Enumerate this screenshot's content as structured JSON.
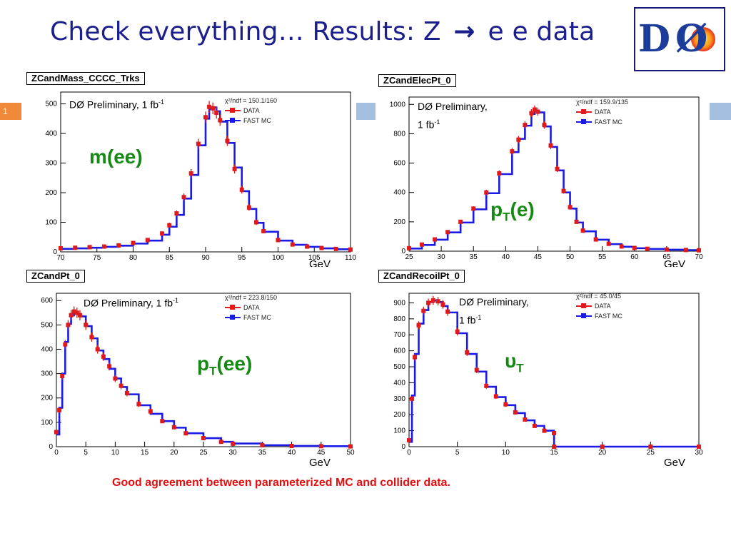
{
  "slide": {
    "title_left": "Check everything… Results: Z",
    "title_arrow": "→",
    "title_right": "e e data",
    "slide_number": "1",
    "footnote": "Good agreement between parameterized MC and collider data."
  },
  "colors": {
    "title": "#1a1f8c",
    "data": "#e01a1a",
    "mc": "#1a1ae6",
    "label": "#148a14",
    "note": "#e01010"
  },
  "common": {
    "prelim_main": "DØ Preliminary, 1 fb",
    "prelim_line1": "DØ Preliminary,",
    "prelim_line2": "1 fb",
    "prelim_sup": "-1",
    "legend_data": "DATA",
    "legend_mc": "FAST MC",
    "unit": "GeV"
  },
  "labels": {
    "mee": "m(ee)",
    "pte_main": "p",
    "pte_sub": "T",
    "pte_tail": "(e)",
    "ptee_main": "p",
    "ptee_sub": "T",
    "ptee_tail": "(ee)",
    "ut_main": "υ",
    "ut_sub": "T"
  },
  "chart_data": [
    {
      "type": "line",
      "histogram": "ZCandMass_CCCC_Trks",
      "chi2": "χ²/ndf = 150.1/160",
      "x": [
        70,
        72,
        74,
        76,
        78,
        80,
        82,
        84,
        85,
        86,
        87,
        88,
        89,
        90,
        90.5,
        91,
        91.5,
        92,
        93,
        94,
        95,
        96,
        97,
        98,
        100,
        102,
        104,
        106,
        108,
        110
      ],
      "series": [
        {
          "name": "DATA",
          "values": [
            12,
            14,
            16,
            18,
            22,
            30,
            40,
            62,
            90,
            130,
            185,
            265,
            365,
            455,
            490,
            485,
            470,
            445,
            375,
            280,
            210,
            150,
            100,
            70,
            40,
            25,
            18,
            13,
            10,
            8
          ]
        },
        {
          "name": "FAST MC",
          "values": [
            10,
            12,
            14,
            17,
            21,
            28,
            38,
            58,
            85,
            125,
            180,
            260,
            360,
            450,
            482,
            488,
            475,
            440,
            368,
            285,
            205,
            145,
            98,
            68,
            38,
            24,
            17,
            12,
            9,
            7
          ]
        }
      ],
      "xlim": [
        70,
        110
      ],
      "ylim": [
        0,
        540
      ],
      "xticks": [
        70,
        75,
        80,
        85,
        90,
        95,
        100,
        105,
        110
      ],
      "yticks": [
        0,
        100,
        200,
        300,
        400,
        500
      ],
      "xlabel": "GeV"
    },
    {
      "type": "line",
      "histogram": "ZCandElecPt_0",
      "chi2": "χ²/ndf = 159.9/135",
      "x": [
        25,
        27,
        29,
        31,
        33,
        35,
        37,
        39,
        41,
        42,
        43,
        44,
        44.5,
        45,
        46,
        47,
        48,
        49,
        50,
        51,
        52,
        54,
        56,
        58,
        60,
        62,
        65,
        68,
        70
      ],
      "series": [
        {
          "name": "DATA",
          "values": [
            20,
            45,
            80,
            130,
            200,
            290,
            400,
            530,
            680,
            760,
            860,
            940,
            965,
            950,
            860,
            720,
            560,
            410,
            300,
            200,
            140,
            80,
            50,
            32,
            22,
            16,
            11,
            8,
            6
          ]
        },
        {
          "name": "FAST MC",
          "values": [
            18,
            42,
            78,
            128,
            195,
            285,
            395,
            525,
            675,
            765,
            855,
            935,
            955,
            945,
            850,
            710,
            550,
            400,
            290,
            195,
            135,
            78,
            48,
            30,
            20,
            15,
            10,
            7,
            5
          ]
        }
      ],
      "xlim": [
        25,
        70
      ],
      "ylim": [
        0,
        1050
      ],
      "xticks": [
        25,
        30,
        35,
        40,
        45,
        50,
        55,
        60,
        65,
        70
      ],
      "yticks": [
        0,
        200,
        400,
        600,
        800,
        1000
      ],
      "xlabel": "GeV"
    },
    {
      "type": "line",
      "histogram": "ZCandPt_0",
      "chi2": "χ²/ndf = 223.8/150",
      "x": [
        0,
        0.5,
        1,
        1.5,
        2,
        2.5,
        3,
        3.5,
        4,
        5,
        6,
        7,
        8,
        9,
        10,
        11,
        12,
        14,
        16,
        18,
        20,
        22,
        25,
        28,
        30,
        35,
        40,
        45,
        50
      ],
      "series": [
        {
          "name": "DATA",
          "values": [
            60,
            150,
            290,
            420,
            500,
            540,
            555,
            550,
            540,
            500,
            450,
            400,
            370,
            330,
            280,
            250,
            220,
            175,
            145,
            105,
            80,
            55,
            35,
            20,
            12,
            6,
            3,
            2,
            1
          ]
        },
        {
          "name": "FAST MC",
          "values": [
            50,
            160,
            300,
            430,
            505,
            540,
            550,
            545,
            535,
            495,
            445,
            395,
            360,
            320,
            280,
            245,
            215,
            170,
            135,
            105,
            78,
            55,
            35,
            20,
            13,
            6,
            3,
            2,
            1
          ]
        }
      ],
      "xlim": [
        0,
        50
      ],
      "ylim": [
        0,
        630
      ],
      "xticks": [
        0,
        5,
        10,
        15,
        20,
        25,
        30,
        35,
        40,
        45,
        50
      ],
      "yticks": [
        0,
        100,
        200,
        300,
        400,
        500,
        600
      ],
      "xlabel": "GeV"
    },
    {
      "type": "line",
      "histogram": "ZCandRecoilPt_0",
      "chi2": "χ²/ndf = 45.0/45",
      "x": [
        0,
        0.3,
        0.6,
        1,
        1.5,
        2,
        2.5,
        3,
        3.5,
        4,
        5,
        6,
        7,
        8,
        9,
        10,
        11,
        12,
        13,
        14,
        15,
        15.01,
        20,
        25,
        30
      ],
      "series": [
        {
          "name": "DATA",
          "values": [
            40,
            300,
            560,
            760,
            850,
            900,
            915,
            910,
            890,
            845,
            720,
            590,
            480,
            380,
            315,
            265,
            215,
            170,
            130,
            100,
            85,
            0,
            0,
            0,
            0
          ]
        },
        {
          "name": "FAST MC",
          "values": [
            30,
            320,
            580,
            770,
            855,
            905,
            915,
            905,
            880,
            840,
            710,
            580,
            470,
            375,
            310,
            260,
            210,
            165,
            130,
            100,
            80,
            0,
            0,
            0,
            0
          ]
        }
      ],
      "xlim": [
        0,
        30
      ],
      "ylim": [
        0,
        960
      ],
      "xticks": [
        0,
        5,
        10,
        15,
        20,
        25,
        30
      ],
      "yticks": [
        0,
        100,
        200,
        300,
        400,
        500,
        600,
        700,
        800,
        900
      ],
      "xlabel": "GeV"
    }
  ]
}
